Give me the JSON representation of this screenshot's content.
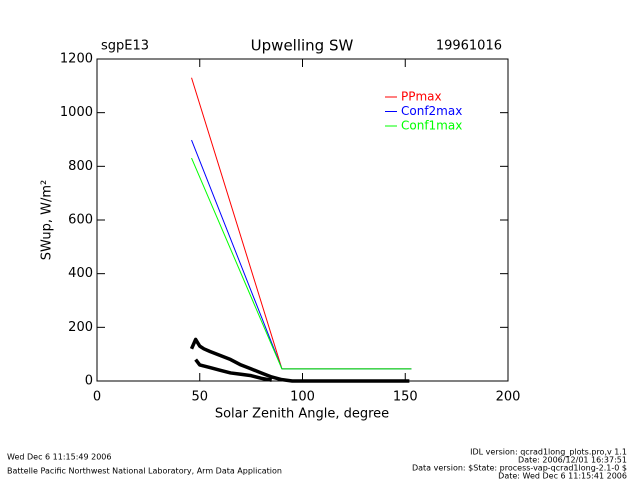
{
  "chart_data": {
    "type": "line",
    "title": "Upwelling SW",
    "subtitle_left": "sgpE13",
    "subtitle_right": "19961016",
    "x_label": "Solar Zenith Angle, degree",
    "y_label": "SWup, W/m²",
    "xlim": [
      0,
      200
    ],
    "xticks": [
      0,
      50,
      100,
      150,
      200
    ],
    "ylim": [
      0,
      1200
    ],
    "yticks": [
      0,
      200,
      400,
      600,
      800,
      1000,
      1200
    ],
    "legend": "upper right",
    "series": [
      {
        "name": "PPmax",
        "color": "#ff0000",
        "x": [
          46,
          90,
          153
        ],
        "values": [
          1130,
          45,
          45
        ]
      },
      {
        "name": "Conf2max",
        "color": "#0000ff",
        "x": [
          46,
          90,
          153
        ],
        "values": [
          898,
          45,
          45
        ]
      },
      {
        "name": "Conf1max",
        "color": "#00ff00",
        "x": [
          46,
          90,
          153
        ],
        "values": [
          831,
          45,
          45
        ]
      },
      {
        "color": "#000000",
        "x": [
          46,
          48,
          50,
          52,
          55,
          60,
          65,
          70,
          75,
          80,
          85,
          90,
          95,
          100,
          120,
          152,
          152,
          48,
          50,
          55,
          60,
          65,
          70,
          75,
          80,
          85
        ],
        "values": [
          120,
          155,
          130,
          120,
          110,
          95,
          80,
          60,
          45,
          30,
          15,
          5,
          0,
          0,
          0,
          0,
          null,
          80,
          60,
          50,
          40,
          30,
          25,
          20,
          10,
          3
        ]
      }
    ],
    "footer_left": [
      "Wed Dec  6 11:15:49 2006",
      "Battelle Pacific Northwest National Laboratory, Arm Data Application"
    ],
    "footer_right": [
      "IDL version: qcrad1long_plots.pro,v 1.1",
      "Date: 2006/12/01 16:37:51",
      "Data version: $State: process-vap-qcrad1long-2.1-0 $",
      "Date: Wed Dec  6 11:15:41 2006"
    ]
  }
}
